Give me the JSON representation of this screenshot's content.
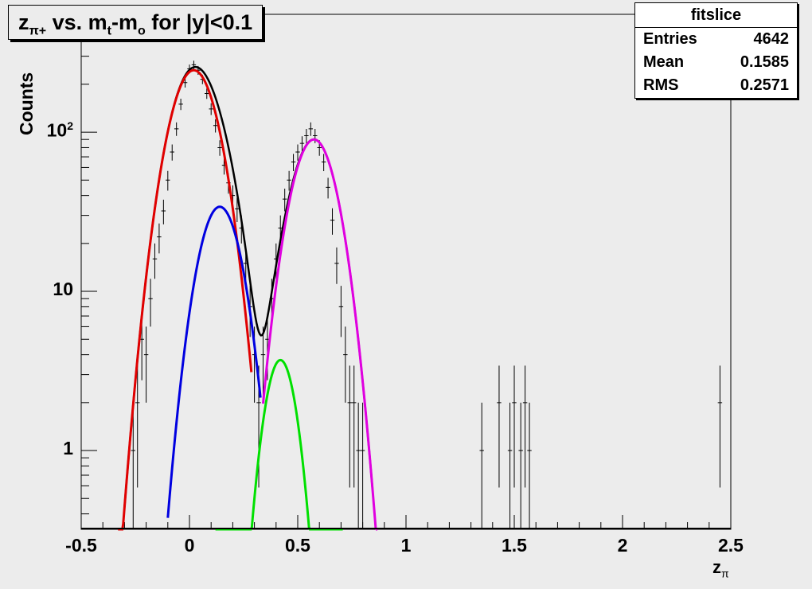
{
  "chart_data": {
    "type": "line",
    "title": "z",
    "title_sub": "π+",
    "title_rest_1": " vs. m",
    "title_sub_t": "t",
    "title_rest_2": "-m",
    "title_sub_o": "o",
    "title_rest_3": " for |y|<0.1",
    "xlabel": "z",
    "xlabel_sub": "π",
    "ylabel": "Counts",
    "xlim": [
      -0.5,
      2.5
    ],
    "ylim": [
      0.32,
      550
    ],
    "yscale": "log",
    "x_ticks": [
      "-0.5",
      "0",
      "0.5",
      "1",
      "1.5",
      "2",
      "2.5"
    ],
    "y_ticks": [
      {
        "value": 1,
        "label": "1"
      },
      {
        "value": 10,
        "label": "10"
      },
      {
        "value": 100,
        "label": "10",
        "exp": "2"
      }
    ],
    "stats": {
      "name": "fitslice",
      "rows": [
        {
          "label": "Entries",
          "value": "4642"
        },
        {
          "label": "Mean",
          "value": "0.1585"
        },
        {
          "label": "RMS",
          "value": "0.2571"
        }
      ]
    },
    "series": [
      {
        "color": "#000000",
        "kind": "histogram",
        "points": [
          [
            -0.26,
            1
          ],
          [
            -0.24,
            2
          ],
          [
            -0.22,
            5
          ],
          [
            -0.2,
            4
          ],
          [
            -0.18,
            9
          ],
          [
            -0.16,
            16
          ],
          [
            -0.14,
            22
          ],
          [
            -0.12,
            32
          ],
          [
            -0.1,
            50
          ],
          [
            -0.08,
            75
          ],
          [
            -0.06,
            105
          ],
          [
            -0.04,
            150
          ],
          [
            -0.02,
            205
          ],
          [
            0,
            250
          ],
          [
            0.02,
            265
          ],
          [
            0.04,
            245
          ],
          [
            0.06,
            215
          ],
          [
            0.08,
            175
          ],
          [
            0.1,
            140
          ],
          [
            0.12,
            110
          ],
          [
            0.14,
            80
          ],
          [
            0.16,
            62
          ],
          [
            0.18,
            48
          ],
          [
            0.2,
            40
          ],
          [
            0.22,
            33
          ],
          [
            0.24,
            25
          ],
          [
            0.26,
            15
          ],
          [
            0.28,
            8
          ],
          [
            0.3,
            4
          ],
          [
            0.32,
            2
          ],
          [
            0.34,
            4
          ],
          [
            0.36,
            5
          ],
          [
            0.38,
            9
          ],
          [
            0.4,
            16
          ],
          [
            0.42,
            25
          ],
          [
            0.44,
            38
          ],
          [
            0.46,
            50
          ],
          [
            0.48,
            65
          ],
          [
            0.5,
            75
          ],
          [
            0.52,
            85
          ],
          [
            0.54,
            95
          ],
          [
            0.56,
            105
          ],
          [
            0.58,
            95
          ],
          [
            0.6,
            80
          ],
          [
            0.62,
            65
          ],
          [
            0.64,
            45
          ],
          [
            0.66,
            28
          ],
          [
            0.68,
            15
          ],
          [
            0.7,
            8
          ],
          [
            0.72,
            4
          ],
          [
            0.74,
            2
          ],
          [
            0.76,
            2
          ],
          [
            0.78,
            1
          ],
          [
            0.8,
            1
          ],
          [
            1.35,
            1
          ],
          [
            1.43,
            2
          ],
          [
            1.48,
            1
          ],
          [
            1.5,
            2
          ],
          [
            1.53,
            1
          ],
          [
            1.55,
            2
          ],
          [
            1.57,
            1
          ],
          [
            2.45,
            2
          ]
        ]
      },
      {
        "color": "#000000",
        "kind": "fit",
        "shape": "total"
      },
      {
        "color": "#e00000",
        "kind": "gauss",
        "amp": 245,
        "mean": 0.02,
        "sigma": 0.09,
        "range": [
          -0.33,
          0.29
        ]
      },
      {
        "color": "#0000e0",
        "kind": "gauss",
        "amp": 34,
        "mean": 0.14,
        "sigma": 0.08,
        "range": [
          -0.1,
          0.33
        ]
      },
      {
        "color": "#00e000",
        "kind": "gauss",
        "amp": 3.7,
        "mean": 0.42,
        "sigma": 0.06,
        "range": [
          0.12,
          0.71
        ]
      },
      {
        "color": "#e000e0",
        "kind": "gauss",
        "amp": 90,
        "mean": 0.575,
        "sigma": 0.085,
        "range": [
          0.34,
          0.87
        ]
      }
    ]
  }
}
